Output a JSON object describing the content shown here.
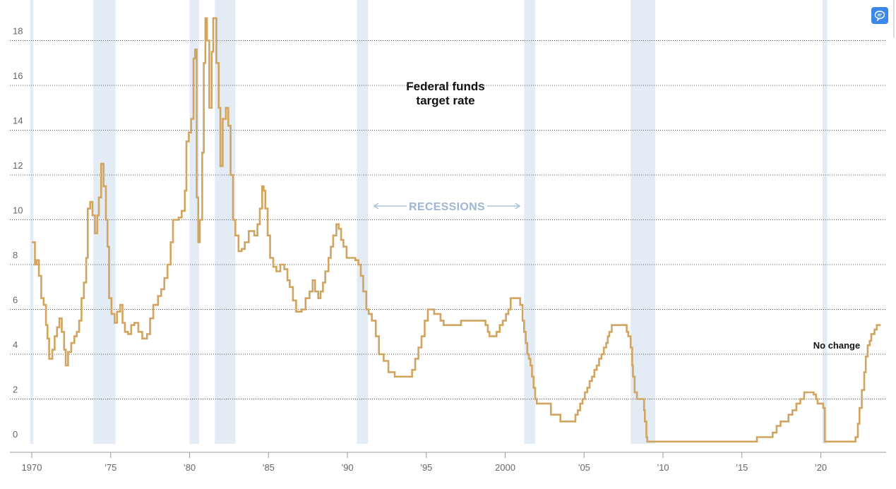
{
  "colors": {
    "line": "#d1a55f",
    "recession": "#e3ebf5",
    "grid": "#555555",
    "recessions_label": "#9fb6d3",
    "badge": "#3c87e8"
  },
  "badge_icon": "chat-bubble-icon",
  "chart_data": {
    "type": "line",
    "title": "Federal funds target rate",
    "title_lines": [
      "Federal funds",
      "target rate"
    ],
    "recessions_label": "RECESSIONS",
    "annotation": "No change",
    "xlim": [
      1970,
      2023.8
    ],
    "ylim": [
      0,
      19.5
    ],
    "grid": "horizontal dotted",
    "y_ticks": [
      {
        "value": 0,
        "label": "0"
      },
      {
        "value": 2,
        "label": "2"
      },
      {
        "value": 4,
        "label": "4"
      },
      {
        "value": 6,
        "label": "6"
      },
      {
        "value": 8,
        "label": "8"
      },
      {
        "value": 10,
        "label": "10"
      },
      {
        "value": 12,
        "label": "12"
      },
      {
        "value": 14,
        "label": "14"
      },
      {
        "value": 16,
        "label": "16"
      },
      {
        "value": 18,
        "label": "18"
      }
    ],
    "x_ticks": [
      {
        "value": 1970,
        "label": "1970"
      },
      {
        "value": 1975,
        "label": "’75"
      },
      {
        "value": 1980,
        "label": "’80"
      },
      {
        "value": 1985,
        "label": "’85"
      },
      {
        "value": 1990,
        "label": "’90"
      },
      {
        "value": 1995,
        "label": "’95"
      },
      {
        "value": 2000,
        "label": "2000"
      },
      {
        "value": 2005,
        "label": "’05"
      },
      {
        "value": 2010,
        "label": "’10"
      },
      {
        "value": 2015,
        "label": "’15"
      },
      {
        "value": 2020,
        "label": "’20"
      }
    ],
    "recessions": [
      [
        1969.9,
        1970.1
      ],
      [
        1973.9,
        1975.3
      ],
      [
        1980.0,
        1980.6
      ],
      [
        1981.6,
        1982.9
      ],
      [
        1990.6,
        1991.3
      ],
      [
        2001.2,
        2001.9
      ],
      [
        2007.95,
        2009.5
      ],
      [
        2020.1,
        2020.4
      ]
    ],
    "series": [
      {
        "values": [
          [
            1970.0,
            9.0
          ],
          [
            1970.2,
            8.0
          ],
          [
            1970.3,
            8.2
          ],
          [
            1970.45,
            7.5
          ],
          [
            1970.6,
            6.5
          ],
          [
            1970.75,
            6.2
          ],
          [
            1970.9,
            5.3
          ],
          [
            1971.0,
            4.7
          ],
          [
            1971.1,
            3.8
          ],
          [
            1971.3,
            4.2
          ],
          [
            1971.45,
            4.8
          ],
          [
            1971.6,
            5.2
          ],
          [
            1971.75,
            5.6
          ],
          [
            1971.9,
            5.0
          ],
          [
            1972.05,
            4.2
          ],
          [
            1972.15,
            3.5
          ],
          [
            1972.3,
            4.1
          ],
          [
            1972.5,
            4.5
          ],
          [
            1972.7,
            4.8
          ],
          [
            1972.85,
            5.0
          ],
          [
            1973.0,
            5.5
          ],
          [
            1973.15,
            6.5
          ],
          [
            1973.3,
            7.2
          ],
          [
            1973.45,
            8.3
          ],
          [
            1973.55,
            10.5
          ],
          [
            1973.7,
            10.8
          ],
          [
            1973.85,
            10.2
          ],
          [
            1974.0,
            9.4
          ],
          [
            1974.15,
            10.2
          ],
          [
            1974.25,
            11.0
          ],
          [
            1974.4,
            12.5
          ],
          [
            1974.55,
            11.5
          ],
          [
            1974.7,
            10.0
          ],
          [
            1974.8,
            8.8
          ],
          [
            1974.9,
            6.5
          ],
          [
            1975.05,
            5.8
          ],
          [
            1975.25,
            5.4
          ],
          [
            1975.4,
            5.9
          ],
          [
            1975.6,
            6.2
          ],
          [
            1975.75,
            5.4
          ],
          [
            1975.9,
            5.0
          ],
          [
            1976.1,
            4.9
          ],
          [
            1976.3,
            5.3
          ],
          [
            1976.5,
            5.4
          ],
          [
            1976.75,
            5.0
          ],
          [
            1977.0,
            4.7
          ],
          [
            1977.3,
            4.9
          ],
          [
            1977.5,
            5.6
          ],
          [
            1977.7,
            6.2
          ],
          [
            1978.0,
            6.6
          ],
          [
            1978.2,
            6.9
          ],
          [
            1978.4,
            7.4
          ],
          [
            1978.6,
            8.0
          ],
          [
            1978.8,
            9.0
          ],
          [
            1978.95,
            10.0
          ],
          [
            1979.3,
            10.1
          ],
          [
            1979.5,
            10.4
          ],
          [
            1979.7,
            11.3
          ],
          [
            1979.8,
            13.5
          ],
          [
            1979.95,
            13.9
          ],
          [
            1980.1,
            14.5
          ],
          [
            1980.25,
            17.2
          ],
          [
            1980.35,
            17.6
          ],
          [
            1980.45,
            11.0
          ],
          [
            1980.55,
            9.0
          ],
          [
            1980.65,
            10.0
          ],
          [
            1980.8,
            13.0
          ],
          [
            1980.9,
            17.0
          ],
          [
            1981.0,
            19.0
          ],
          [
            1981.1,
            18.0
          ],
          [
            1981.25,
            15.0
          ],
          [
            1981.4,
            17.5
          ],
          [
            1981.5,
            19.0
          ],
          [
            1981.7,
            17.0
          ],
          [
            1981.85,
            15.0
          ],
          [
            1981.95,
            12.4
          ],
          [
            1982.1,
            14.5
          ],
          [
            1982.3,
            15.0
          ],
          [
            1982.45,
            14.2
          ],
          [
            1982.6,
            12.0
          ],
          [
            1982.75,
            10.0
          ],
          [
            1982.9,
            9.3
          ],
          [
            1983.1,
            8.6
          ],
          [
            1983.3,
            8.7
          ],
          [
            1983.5,
            9.0
          ],
          [
            1983.75,
            9.5
          ],
          [
            1984.1,
            9.3
          ],
          [
            1984.3,
            9.8
          ],
          [
            1984.45,
            10.5
          ],
          [
            1984.6,
            11.5
          ],
          [
            1984.7,
            11.3
          ],
          [
            1984.8,
            10.5
          ],
          [
            1984.95,
            9.3
          ],
          [
            1985.1,
            8.3
          ],
          [
            1985.3,
            7.9
          ],
          [
            1985.5,
            7.7
          ],
          [
            1985.75,
            8.0
          ],
          [
            1986.0,
            7.8
          ],
          [
            1986.2,
            7.3
          ],
          [
            1986.35,
            7.0
          ],
          [
            1986.55,
            6.4
          ],
          [
            1986.75,
            5.9
          ],
          [
            1987.1,
            6.0
          ],
          [
            1987.35,
            6.5
          ],
          [
            1987.6,
            6.8
          ],
          [
            1987.8,
            7.3
          ],
          [
            1987.95,
            6.8
          ],
          [
            1988.15,
            6.5
          ],
          [
            1988.3,
            6.8
          ],
          [
            1988.45,
            7.2
          ],
          [
            1988.6,
            7.7
          ],
          [
            1988.8,
            8.3
          ],
          [
            1988.95,
            8.8
          ],
          [
            1989.1,
            9.3
          ],
          [
            1989.3,
            9.8
          ],
          [
            1989.45,
            9.6
          ],
          [
            1989.6,
            9.1
          ],
          [
            1989.75,
            8.8
          ],
          [
            1989.95,
            8.3
          ],
          [
            1990.3,
            8.3
          ],
          [
            1990.5,
            8.2
          ],
          [
            1990.7,
            8.0
          ],
          [
            1990.85,
            7.5
          ],
          [
            1991.0,
            6.8
          ],
          [
            1991.2,
            6.0
          ],
          [
            1991.35,
            5.8
          ],
          [
            1991.55,
            5.5
          ],
          [
            1991.8,
            4.8
          ],
          [
            1992.0,
            4.0
          ],
          [
            1992.3,
            3.7
          ],
          [
            1992.6,
            3.2
          ],
          [
            1993.0,
            3.0
          ],
          [
            1994.1,
            3.3
          ],
          [
            1994.3,
            3.8
          ],
          [
            1994.5,
            4.3
          ],
          [
            1994.7,
            4.8
          ],
          [
            1994.9,
            5.5
          ],
          [
            1995.1,
            6.0
          ],
          [
            1995.5,
            5.8
          ],
          [
            1995.9,
            5.5
          ],
          [
            1996.1,
            5.3
          ],
          [
            1997.2,
            5.5
          ],
          [
            1998.75,
            5.3
          ],
          [
            1998.9,
            5.0
          ],
          [
            1999.0,
            4.8
          ],
          [
            1999.45,
            5.0
          ],
          [
            1999.65,
            5.3
          ],
          [
            1999.85,
            5.5
          ],
          [
            2000.05,
            5.8
          ],
          [
            2000.2,
            6.0
          ],
          [
            2000.35,
            6.5
          ],
          [
            2000.95,
            6.2
          ],
          [
            2001.1,
            5.5
          ],
          [
            2001.2,
            5.0
          ],
          [
            2001.3,
            4.5
          ],
          [
            2001.4,
            4.0
          ],
          [
            2001.5,
            3.8
          ],
          [
            2001.6,
            3.5
          ],
          [
            2001.7,
            3.0
          ],
          [
            2001.8,
            2.5
          ],
          [
            2001.9,
            2.0
          ],
          [
            2002.0,
            1.8
          ],
          [
            2002.9,
            1.3
          ],
          [
            2003.5,
            1.0
          ],
          [
            2004.45,
            1.3
          ],
          [
            2004.6,
            1.5
          ],
          [
            2004.75,
            1.8
          ],
          [
            2004.9,
            2.0
          ],
          [
            2005.05,
            2.3
          ],
          [
            2005.2,
            2.5
          ],
          [
            2005.35,
            2.8
          ],
          [
            2005.5,
            3.0
          ],
          [
            2005.65,
            3.3
          ],
          [
            2005.8,
            3.5
          ],
          [
            2005.95,
            3.8
          ],
          [
            2006.1,
            4.0
          ],
          [
            2006.25,
            4.3
          ],
          [
            2006.4,
            4.5
          ],
          [
            2006.5,
            4.8
          ],
          [
            2006.6,
            5.0
          ],
          [
            2006.75,
            5.3
          ],
          [
            2007.7,
            5.0
          ],
          [
            2007.8,
            4.8
          ],
          [
            2007.95,
            4.3
          ],
          [
            2008.05,
            3.5
          ],
          [
            2008.1,
            3.0
          ],
          [
            2008.2,
            2.3
          ],
          [
            2008.35,
            2.0
          ],
          [
            2008.8,
            1.5
          ],
          [
            2008.85,
            1.0
          ],
          [
            2008.95,
            0.3
          ],
          [
            2009.0,
            0.1
          ],
          [
            2015.95,
            0.3
          ],
          [
            2016.95,
            0.5
          ],
          [
            2017.2,
            0.8
          ],
          [
            2017.45,
            1.0
          ],
          [
            2017.95,
            1.3
          ],
          [
            2018.2,
            1.5
          ],
          [
            2018.45,
            1.8
          ],
          [
            2018.7,
            2.0
          ],
          [
            2018.95,
            2.3
          ],
          [
            2019.55,
            2.2
          ],
          [
            2019.7,
            2.0
          ],
          [
            2019.8,
            1.8
          ],
          [
            2020.15,
            1.6
          ],
          [
            2020.25,
            0.1
          ],
          [
            2022.2,
            0.3
          ],
          [
            2022.35,
            0.9
          ],
          [
            2022.45,
            1.6
          ],
          [
            2022.6,
            2.4
          ],
          [
            2022.75,
            3.2
          ],
          [
            2022.85,
            3.9
          ],
          [
            2022.97,
            4.4
          ],
          [
            2023.1,
            4.6
          ],
          [
            2023.2,
            4.9
          ],
          [
            2023.4,
            5.1
          ],
          [
            2023.55,
            5.3
          ],
          [
            2023.8,
            5.3
          ]
        ]
      }
    ]
  }
}
